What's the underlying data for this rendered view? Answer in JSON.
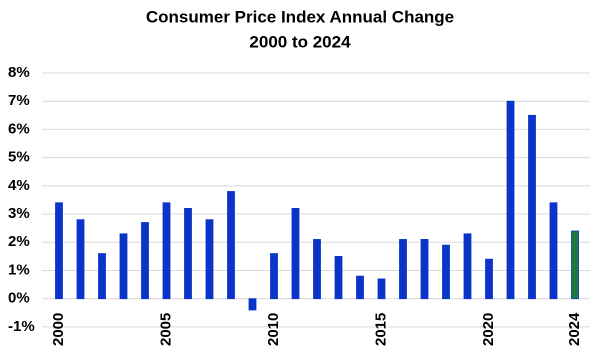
{
  "chart_data": {
    "type": "bar",
    "title": "Consumer Price Index Annual Change",
    "subtitle": "2000 to 2024",
    "categories": [
      "2000",
      null,
      null,
      null,
      null,
      "2005",
      null,
      null,
      null,
      null,
      "2010",
      null,
      null,
      null,
      null,
      "2015",
      null,
      null,
      null,
      null,
      "2020",
      null,
      null,
      null,
      "2024"
    ],
    "values": [
      3.4,
      2.8,
      1.6,
      2.3,
      2.7,
      3.4,
      3.2,
      2.8,
      3.8,
      -0.4,
      1.6,
      3.2,
      2.1,
      1.5,
      0.8,
      0.7,
      2.1,
      2.1,
      1.9,
      2.3,
      1.4,
      7.0,
      6.5,
      3.4,
      2.4
    ],
    "colors": [
      "#0a35c8",
      "#0a35c8",
      "#0a35c8",
      "#0a35c8",
      "#0a35c8",
      "#0a35c8",
      "#0a35c8",
      "#0a35c8",
      "#0a35c8",
      "#0a35c8",
      "#0a35c8",
      "#0a35c8",
      "#0a35c8",
      "#0a35c8",
      "#0a35c8",
      "#0a35c8",
      "#0a35c8",
      "#0a35c8",
      "#0a35c8",
      "#0a35c8",
      "#0a35c8",
      "#0a35c8",
      "#0a35c8",
      "#0a35c8",
      "#1b7a3c"
    ],
    "ylim": [
      -1,
      8
    ],
    "yticks": [
      {
        "value": -1,
        "label": "-1%"
      },
      {
        "value": 0,
        "label": "0%"
      },
      {
        "value": 1,
        "label": "1%"
      },
      {
        "value": 2,
        "label": "2%"
      },
      {
        "value": 3,
        "label": "3%"
      },
      {
        "value": 4,
        "label": "4%"
      },
      {
        "value": 5,
        "label": "5%"
      },
      {
        "value": 6,
        "label": "6%"
      },
      {
        "value": 7,
        "label": "7%"
      },
      {
        "value": 8,
        "label": "8%"
      }
    ],
    "grid": true
  }
}
